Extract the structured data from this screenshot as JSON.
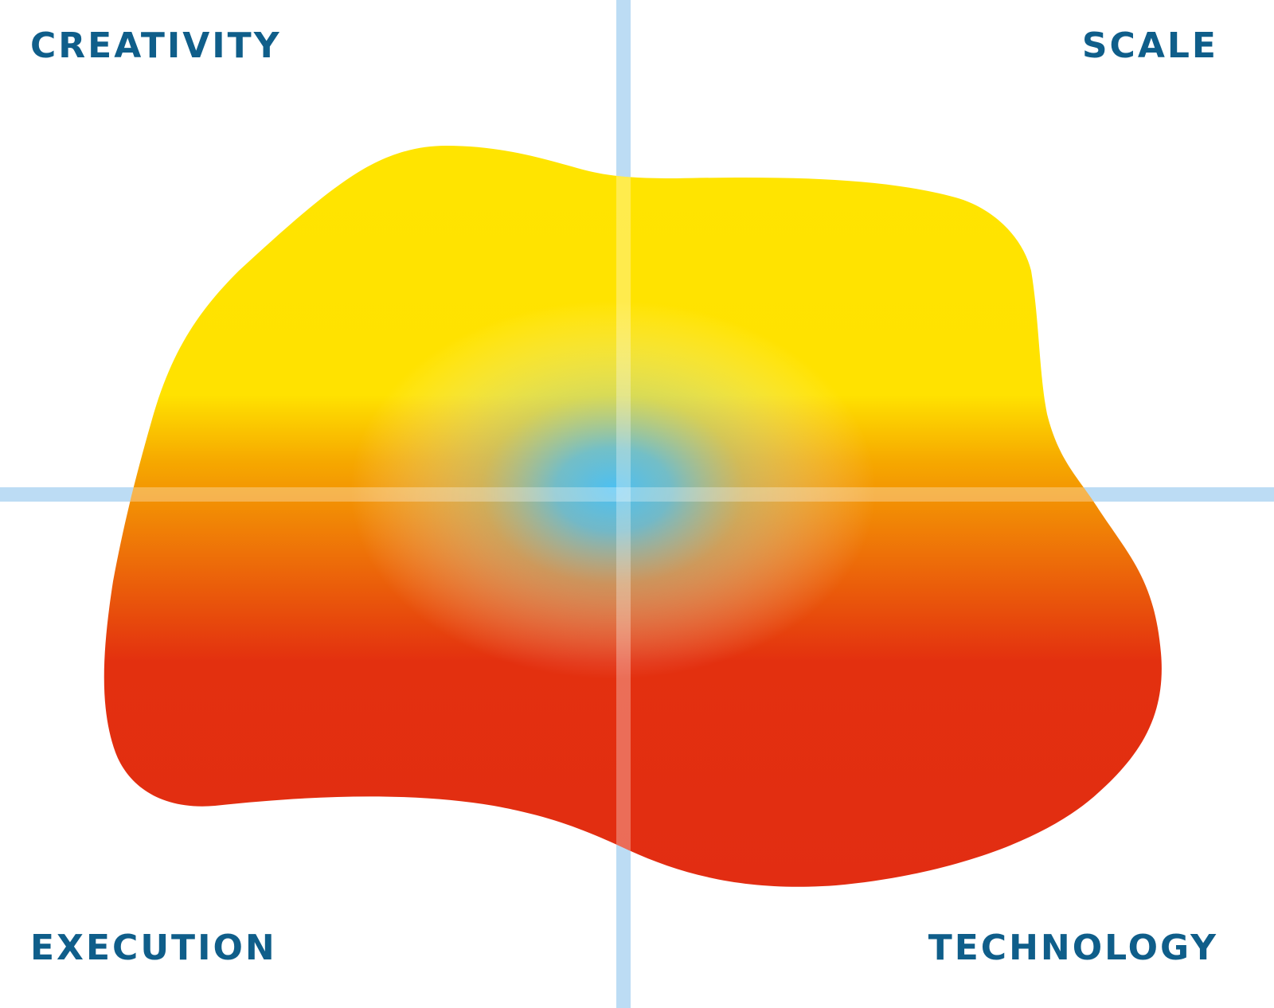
{
  "quadrants": {
    "top_left": "CREATIVITY",
    "top_right": "SCALE",
    "bottom_left": "EXECUTION",
    "bottom_right": "TECHNOLOGY"
  }
}
